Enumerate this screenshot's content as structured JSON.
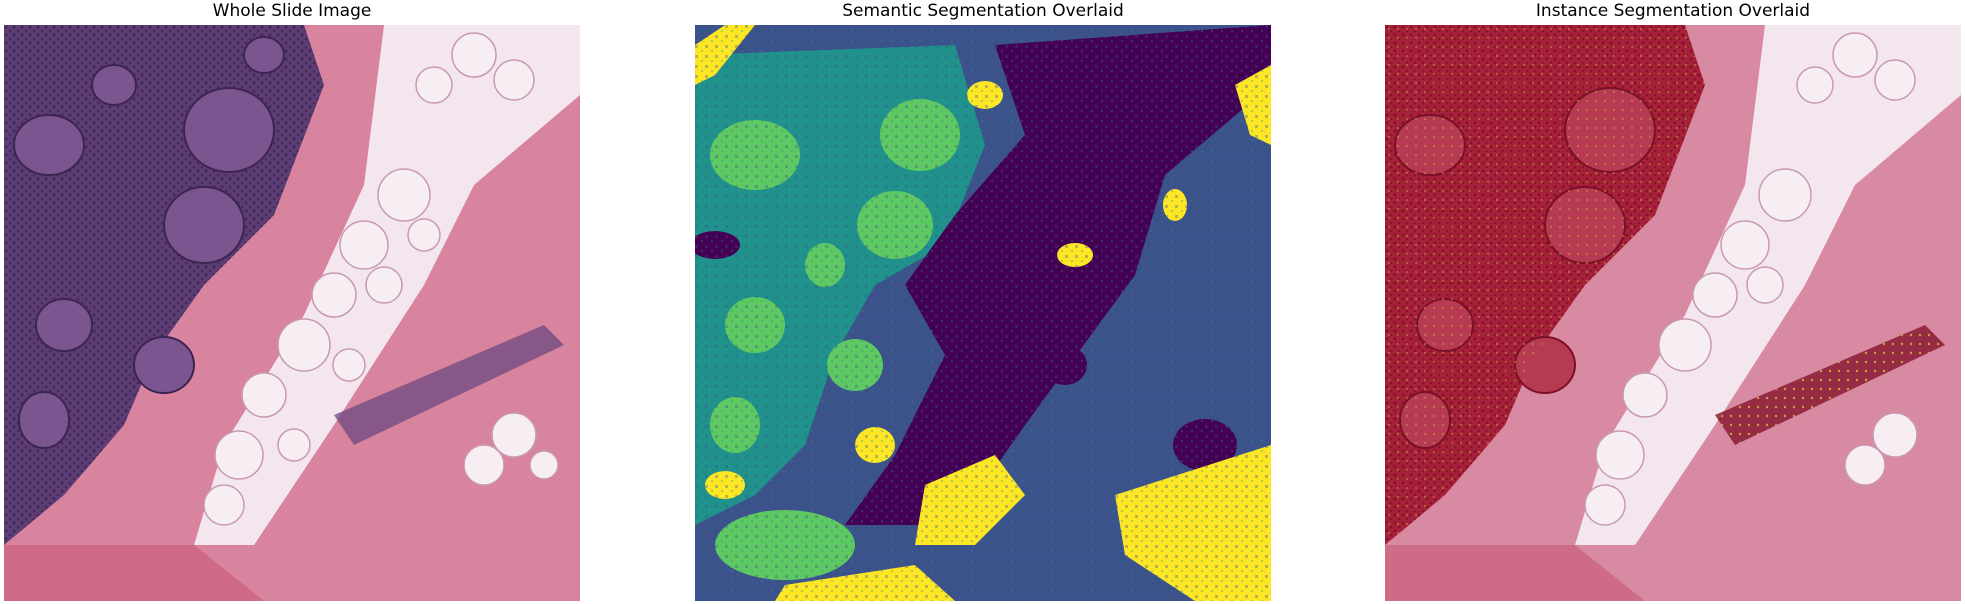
{
  "panels": [
    {
      "title": "Whole Slide Image"
    },
    {
      "title": "Semantic Segmentation Overlaid"
    },
    {
      "title": "Instance Segmentation Overlaid"
    }
  ],
  "colors": {
    "he_stroma": "#d9849e",
    "he_tumor": "#5c3d74",
    "he_fat": "#f3e6ee",
    "seg_dark_purple": "#440154",
    "seg_blue": "#3b528b",
    "seg_teal": "#21918c",
    "seg_green": "#5ec962",
    "seg_yellow": "#fde725",
    "instance_red": "#a8203a",
    "instance_outline": "#c9a13a"
  }
}
